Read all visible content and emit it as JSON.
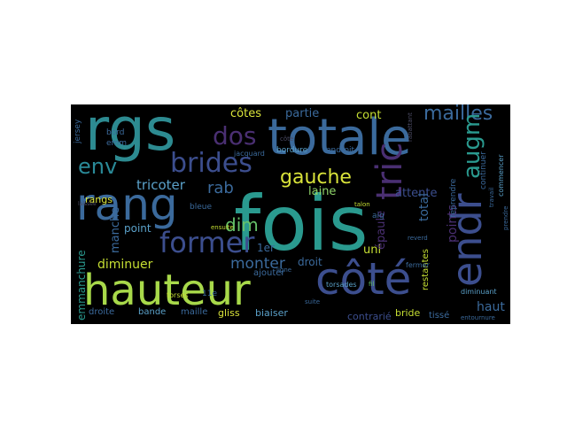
{
  "palette": {
    "teal": "#2a9a8f",
    "blue": "#3b6a9c",
    "purple": "#4a2f72",
    "indigo": "#3c4e8e",
    "green": "#66c26a",
    "lime": "#c6df33",
    "yellow": "#d9e33a",
    "cyan": "#2fb08f",
    "gray": "#4b4b64"
  },
  "words": [
    {
      "text": "fois",
      "color": "#2a9a8f"
    },
    {
      "text": "totale",
      "color": "#3b6a9c"
    },
    {
      "text": "rgs",
      "color": "#2d8b91"
    },
    {
      "text": "hauteur",
      "color": "#a8d94a"
    },
    {
      "text": "côté",
      "color": "#3c4e8e"
    },
    {
      "text": "rang",
      "color": "#3b6a9c"
    },
    {
      "text": "endr",
      "color": "#3c4e8e"
    },
    {
      "text": "tric",
      "color": "#4a2f72"
    },
    {
      "text": "former",
      "color": "#3c4e8e"
    },
    {
      "text": "brides",
      "color": "#3c4e8e"
    },
    {
      "text": "dos",
      "color": "#4a2f72"
    },
    {
      "text": "env",
      "color": "#2a8a98"
    },
    {
      "text": "mailles",
      "color": "#3b6a9c"
    },
    {
      "text": "gauche",
      "color": "#d9e33a"
    },
    {
      "text": "augm",
      "color": "#2a9a8f"
    },
    {
      "text": "rab",
      "color": "#3b6a9c"
    },
    {
      "text": "dim",
      "color": "#66c26a"
    },
    {
      "text": "tricoter",
      "color": "#5aa0c8"
    },
    {
      "text": "monter",
      "color": "#3b6a9c"
    },
    {
      "text": "diminuer",
      "color": "#c6df33"
    },
    {
      "text": "côtes",
      "color": "#d9e33a"
    },
    {
      "text": "partie",
      "color": "#3b6a9c"
    },
    {
      "text": "cont",
      "color": "#c6df33"
    },
    {
      "text": "laine",
      "color": "#8fd46a"
    },
    {
      "text": "attente",
      "color": "#3c4e8e"
    },
    {
      "text": "total",
      "color": "#3b6a9c"
    },
    {
      "text": "points",
      "color": "#4a2f72"
    },
    {
      "text": "haut",
      "color": "#3b6a9c"
    },
    {
      "text": "point",
      "color": "#5aa0c8"
    },
    {
      "text": "manche",
      "color": "#3b6a9c"
    },
    {
      "text": "emmanchure",
      "color": "#2a9a8f"
    },
    {
      "text": "rangs",
      "color": "#d9e33a"
    },
    {
      "text": "droit",
      "color": "#3b6a9c"
    },
    {
      "text": "1er",
      "color": "#3b6a9c"
    },
    {
      "text": "ajouter",
      "color": "#3b6a9c"
    },
    {
      "text": "uni",
      "color": "#c6df33"
    },
    {
      "text": "épaule",
      "color": "#4a2f72"
    },
    {
      "text": "contrarié",
      "color": "#3c4e8e"
    },
    {
      "text": "bride",
      "color": "#c6df33"
    },
    {
      "text": "tissé",
      "color": "#3b6a9c"
    },
    {
      "text": "droite",
      "color": "#3b6a9c"
    },
    {
      "text": "bande",
      "color": "#5aa0c8"
    },
    {
      "text": "maille",
      "color": "#3b6a9c"
    },
    {
      "text": "gliss",
      "color": "#d9e33a"
    },
    {
      "text": "biaiser",
      "color": "#5aa0c8"
    },
    {
      "text": "jersey",
      "color": "#3b6a9c"
    },
    {
      "text": "emm",
      "color": "#3b6a9c"
    },
    {
      "text": "bord",
      "color": "#3b6a9c"
    },
    {
      "text": "bordure",
      "color": "#5aa0c8"
    },
    {
      "text": "endroit",
      "color": "#3b6a9c"
    },
    {
      "text": "jacquard",
      "color": "#3b6a9c"
    },
    {
      "text": "torsades",
      "color": "#5aa0c8"
    },
    {
      "text": "bleue",
      "color": "#3b6a9c"
    },
    {
      "text": "restantes",
      "color": "#c6df33"
    },
    {
      "text": "diminuant",
      "color": "#5aa0c8"
    },
    {
      "text": "reprendre",
      "color": "#3b6a9c"
    },
    {
      "text": "continuer",
      "color": "#3b6a9c"
    },
    {
      "text": "commencer",
      "color": "#5aa0c8"
    },
    {
      "text": "ensuite",
      "color": "#c6df33"
    },
    {
      "text": "torses",
      "color": "#c6df33"
    },
    {
      "text": "11e",
      "color": "#3b6a9c"
    },
    {
      "text": "fermer",
      "color": "#3b6a9c"
    },
    {
      "text": "entournure",
      "color": "#3b6a9c"
    },
    {
      "text": "aig",
      "color": "#3b6a9c"
    },
    {
      "text": "talon",
      "color": "#c6df33"
    },
    {
      "text": "suite",
      "color": "#3b6a9c"
    },
    {
      "text": "prendre",
      "color": "#3b6a9c"
    },
    {
      "text": "travail",
      "color": "#3b6a9c"
    },
    {
      "text": "fil",
      "color": "#66c26a"
    },
    {
      "text": "ligne",
      "color": "#3b6a9c"
    },
    {
      "text": "reverd",
      "color": "#3b6a9c"
    },
    {
      "text": "rabattant",
      "color": "#4b4b64"
    },
    {
      "text": "côté",
      "color": "#4b4b64"
    },
    {
      "text": "laissée",
      "color": "#4b4b64"
    }
  ]
}
